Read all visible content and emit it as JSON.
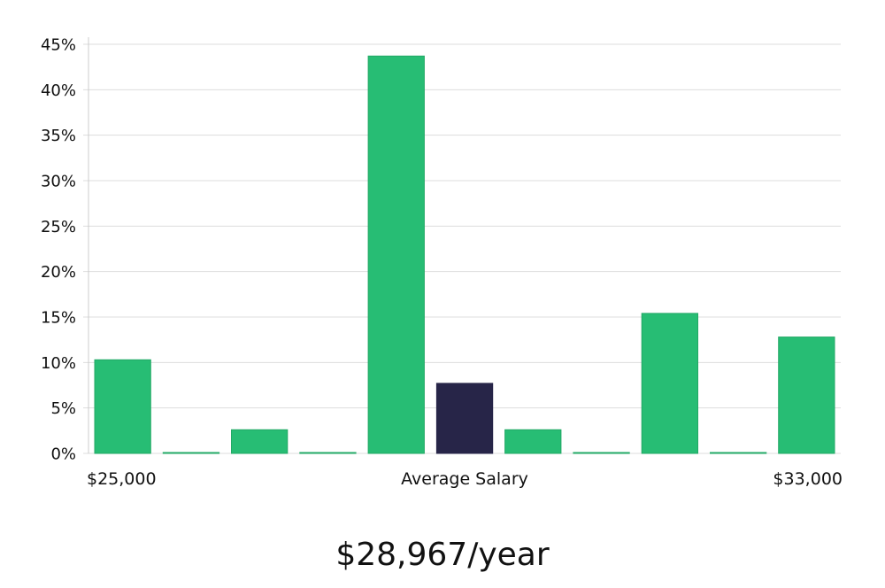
{
  "chart_data": {
    "type": "bar",
    "y_unit": "%",
    "ylim": [
      0,
      45
    ],
    "y_ticks": [
      "0%",
      "5%",
      "10%",
      "15%",
      "20%",
      "25%",
      "30%",
      "35%",
      "40%",
      "45%"
    ],
    "x_labels": {
      "left": "$25,000",
      "center": "Average Salary",
      "right": "$33,000"
    },
    "values": [
      10.3,
      0.1,
      2.6,
      0.1,
      43.7,
      7.7,
      2.6,
      0.1,
      15.4,
      0.1,
      12.8
    ],
    "highlight_index": 5,
    "grid": true,
    "colors": {
      "bar": "#27bd74",
      "bar_stroke": "#22a865",
      "highlight": "#272548",
      "grid": "#dddddd",
      "axis": "#cccccc"
    }
  },
  "summary": {
    "salary_text": "$28,967/year"
  }
}
